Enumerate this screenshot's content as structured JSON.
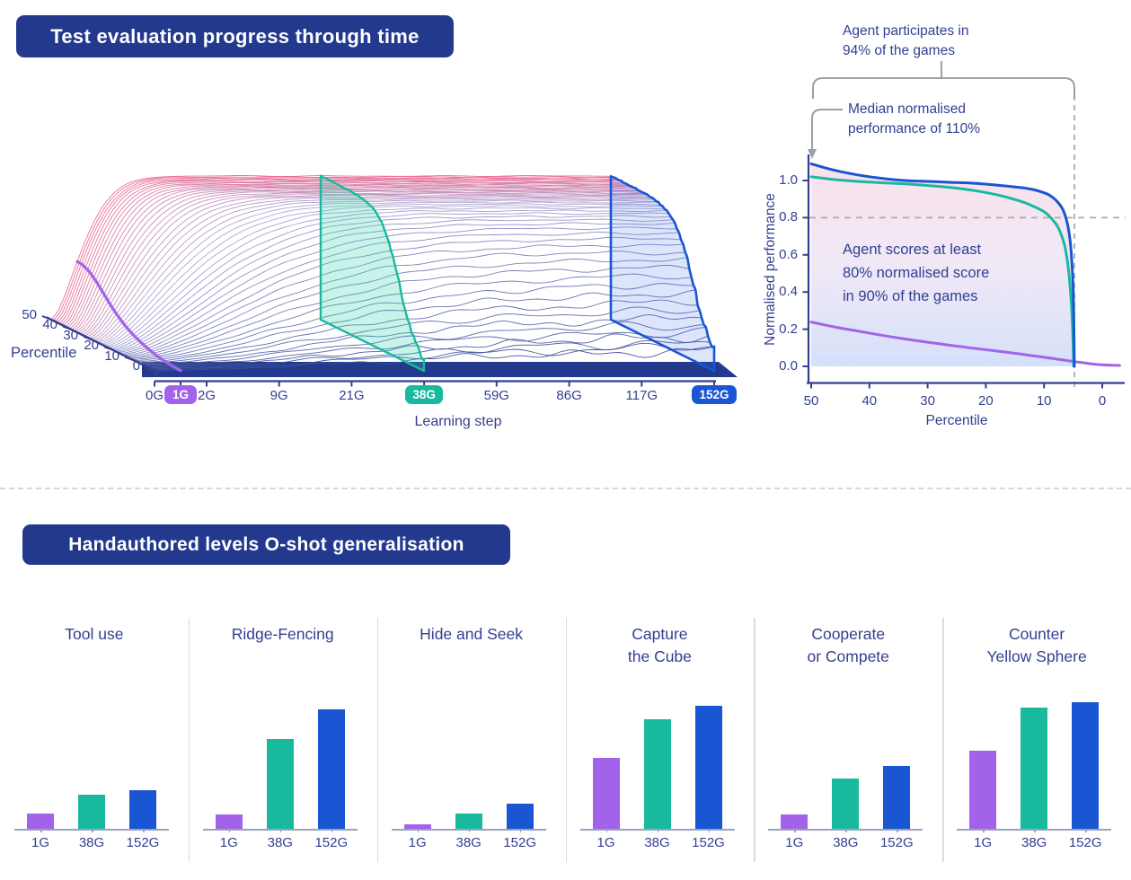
{
  "banners": {
    "top": "Test evaluation progress through time",
    "bottom": "Handauthored levels O-shot generalisation"
  },
  "colors": {
    "banner_navy": "#22398e",
    "text_navy": "#343f90",
    "purple": "#a263ea",
    "teal": "#19b99e",
    "blue": "#1a55d3",
    "pink": "#ec6a92",
    "ridge_navy": "#3d4f9d",
    "ridge_lavender": "#a9a3d2",
    "annotation_gray": "#9aa0a6",
    "dashed_gray": "#a7abb2"
  },
  "chart_data": [
    {
      "type": "ridgeline-3d",
      "title": "Test evaluation progress through time",
      "xlabel": "Learning step",
      "x_tick_labels": [
        "0G",
        "1G",
        "2G",
        "9G",
        "21G",
        "38G",
        "59G",
        "86G",
        "117G",
        "152G"
      ],
      "depth_label": "Percentile",
      "depth_tick_labels": [
        "50",
        "40",
        "30",
        "20",
        "10",
        "0"
      ],
      "percentile_range": [
        0,
        50
      ],
      "highlighted_steps": [
        {
          "label": "1G",
          "color": "#a263ea",
          "t": 0.0465
        },
        {
          "label": "38G",
          "color": "#19b99e",
          "t": 0.4815
        },
        {
          "label": "152G",
          "color": "#1a55d3",
          "t": 1.0
        }
      ]
    },
    {
      "type": "line",
      "xlabel": "Percentile",
      "ylabel": "Normalised performance",
      "x_ticks": [
        "50",
        "40",
        "30",
        "20",
        "10",
        "0"
      ],
      "x_reversed": true,
      "y_ticks": [
        "0.0",
        "0.2",
        "0.4",
        "0.6",
        "0.8",
        "1.0"
      ],
      "reference_lines": {
        "horizontal_y": 0.8,
        "vertical_x_percentile": 4.8
      },
      "series": [
        {
          "name": "152G",
          "color": "#1a55d3",
          "points": [
            [
              50,
              1.09
            ],
            [
              46,
              1.055
            ],
            [
              42,
              1.03
            ],
            [
              38,
              1.012
            ],
            [
              34,
              1.0
            ],
            [
              30,
              0.995
            ],
            [
              26,
              0.99
            ],
            [
              22,
              0.985
            ],
            [
              18,
              0.975
            ],
            [
              14,
              0.962
            ],
            [
              12,
              0.952
            ],
            [
              10,
              0.934
            ],
            [
              9,
              0.92
            ],
            [
              8,
              0.895
            ],
            [
              7,
              0.857
            ],
            [
              6.4,
              0.815
            ],
            [
              5.9,
              0.755
            ],
            [
              5.5,
              0.67
            ],
            [
              5.2,
              0.55
            ],
            [
              5.0,
              0.42
            ],
            [
              4.9,
              0.28
            ],
            [
              4.8,
              0.0
            ]
          ]
        },
        {
          "name": "38G",
          "color": "#19b99e",
          "points": [
            [
              50,
              1.02
            ],
            [
              46,
              1.005
            ],
            [
              42,
              0.995
            ],
            [
              38,
              0.988
            ],
            [
              34,
              0.982
            ],
            [
              30,
              0.973
            ],
            [
              26,
              0.962
            ],
            [
              22,
              0.946
            ],
            [
              18,
              0.922
            ],
            [
              14,
              0.888
            ],
            [
              12,
              0.864
            ],
            [
              10,
              0.832
            ],
            [
              9,
              0.805
            ],
            [
              8,
              0.768
            ],
            [
              7.5,
              0.742
            ],
            [
              7,
              0.705
            ],
            [
              6.5,
              0.655
            ],
            [
              6.1,
              0.59
            ],
            [
              5.8,
              0.52
            ],
            [
              5.5,
              0.42
            ],
            [
              5.2,
              0.28
            ],
            [
              5.0,
              0.12
            ],
            [
              4.9,
              0.0
            ]
          ]
        },
        {
          "name": "1G",
          "color": "#a263ea",
          "points": [
            [
              50,
              0.238
            ],
            [
              46,
              0.212
            ],
            [
              42,
              0.19
            ],
            [
              38,
              0.168
            ],
            [
              34,
              0.148
            ],
            [
              30,
              0.13
            ],
            [
              26,
              0.113
            ],
            [
              22,
              0.097
            ],
            [
              18,
              0.082
            ],
            [
              14,
              0.066
            ],
            [
              10,
              0.049
            ],
            [
              8,
              0.04
            ],
            [
              6,
              0.031
            ],
            [
              4,
              0.022
            ],
            [
              2,
              0.014
            ],
            [
              0,
              0.008
            ],
            [
              -3,
              0.005
            ]
          ]
        }
      ],
      "annotations": {
        "participation": "Agent participates in\n94% of the games",
        "median": "Median normalised\nperformance of 110%",
        "scores": "Agent scores at least\n80% normalised score\nin 90% of the games"
      }
    },
    {
      "type": "bar",
      "title": "Handauthored levels O-shot generalisation",
      "categories": [
        "1G",
        "38G",
        "152G"
      ],
      "bar_colors": [
        "#a263ea",
        "#19b99e",
        "#1a55d3"
      ],
      "ylim": [
        0,
        1
      ],
      "panels": [
        {
          "title": "Tool use",
          "values": [
            0.12,
            0.26,
            0.3
          ]
        },
        {
          "title": "Ridge-Fencing",
          "values": [
            0.11,
            0.69,
            0.92
          ]
        },
        {
          "title": "Hide and Seek",
          "values": [
            0.035,
            0.115,
            0.19
          ]
        },
        {
          "title": "Capture\nthe Cube",
          "values": [
            0.545,
            0.84,
            0.945
          ]
        },
        {
          "title": "Cooperate\nor Compete",
          "values": [
            0.11,
            0.385,
            0.48
          ]
        },
        {
          "title": "Counter\nYellow Sphere",
          "values": [
            0.6,
            0.93,
            0.97
          ]
        }
      ]
    }
  ]
}
